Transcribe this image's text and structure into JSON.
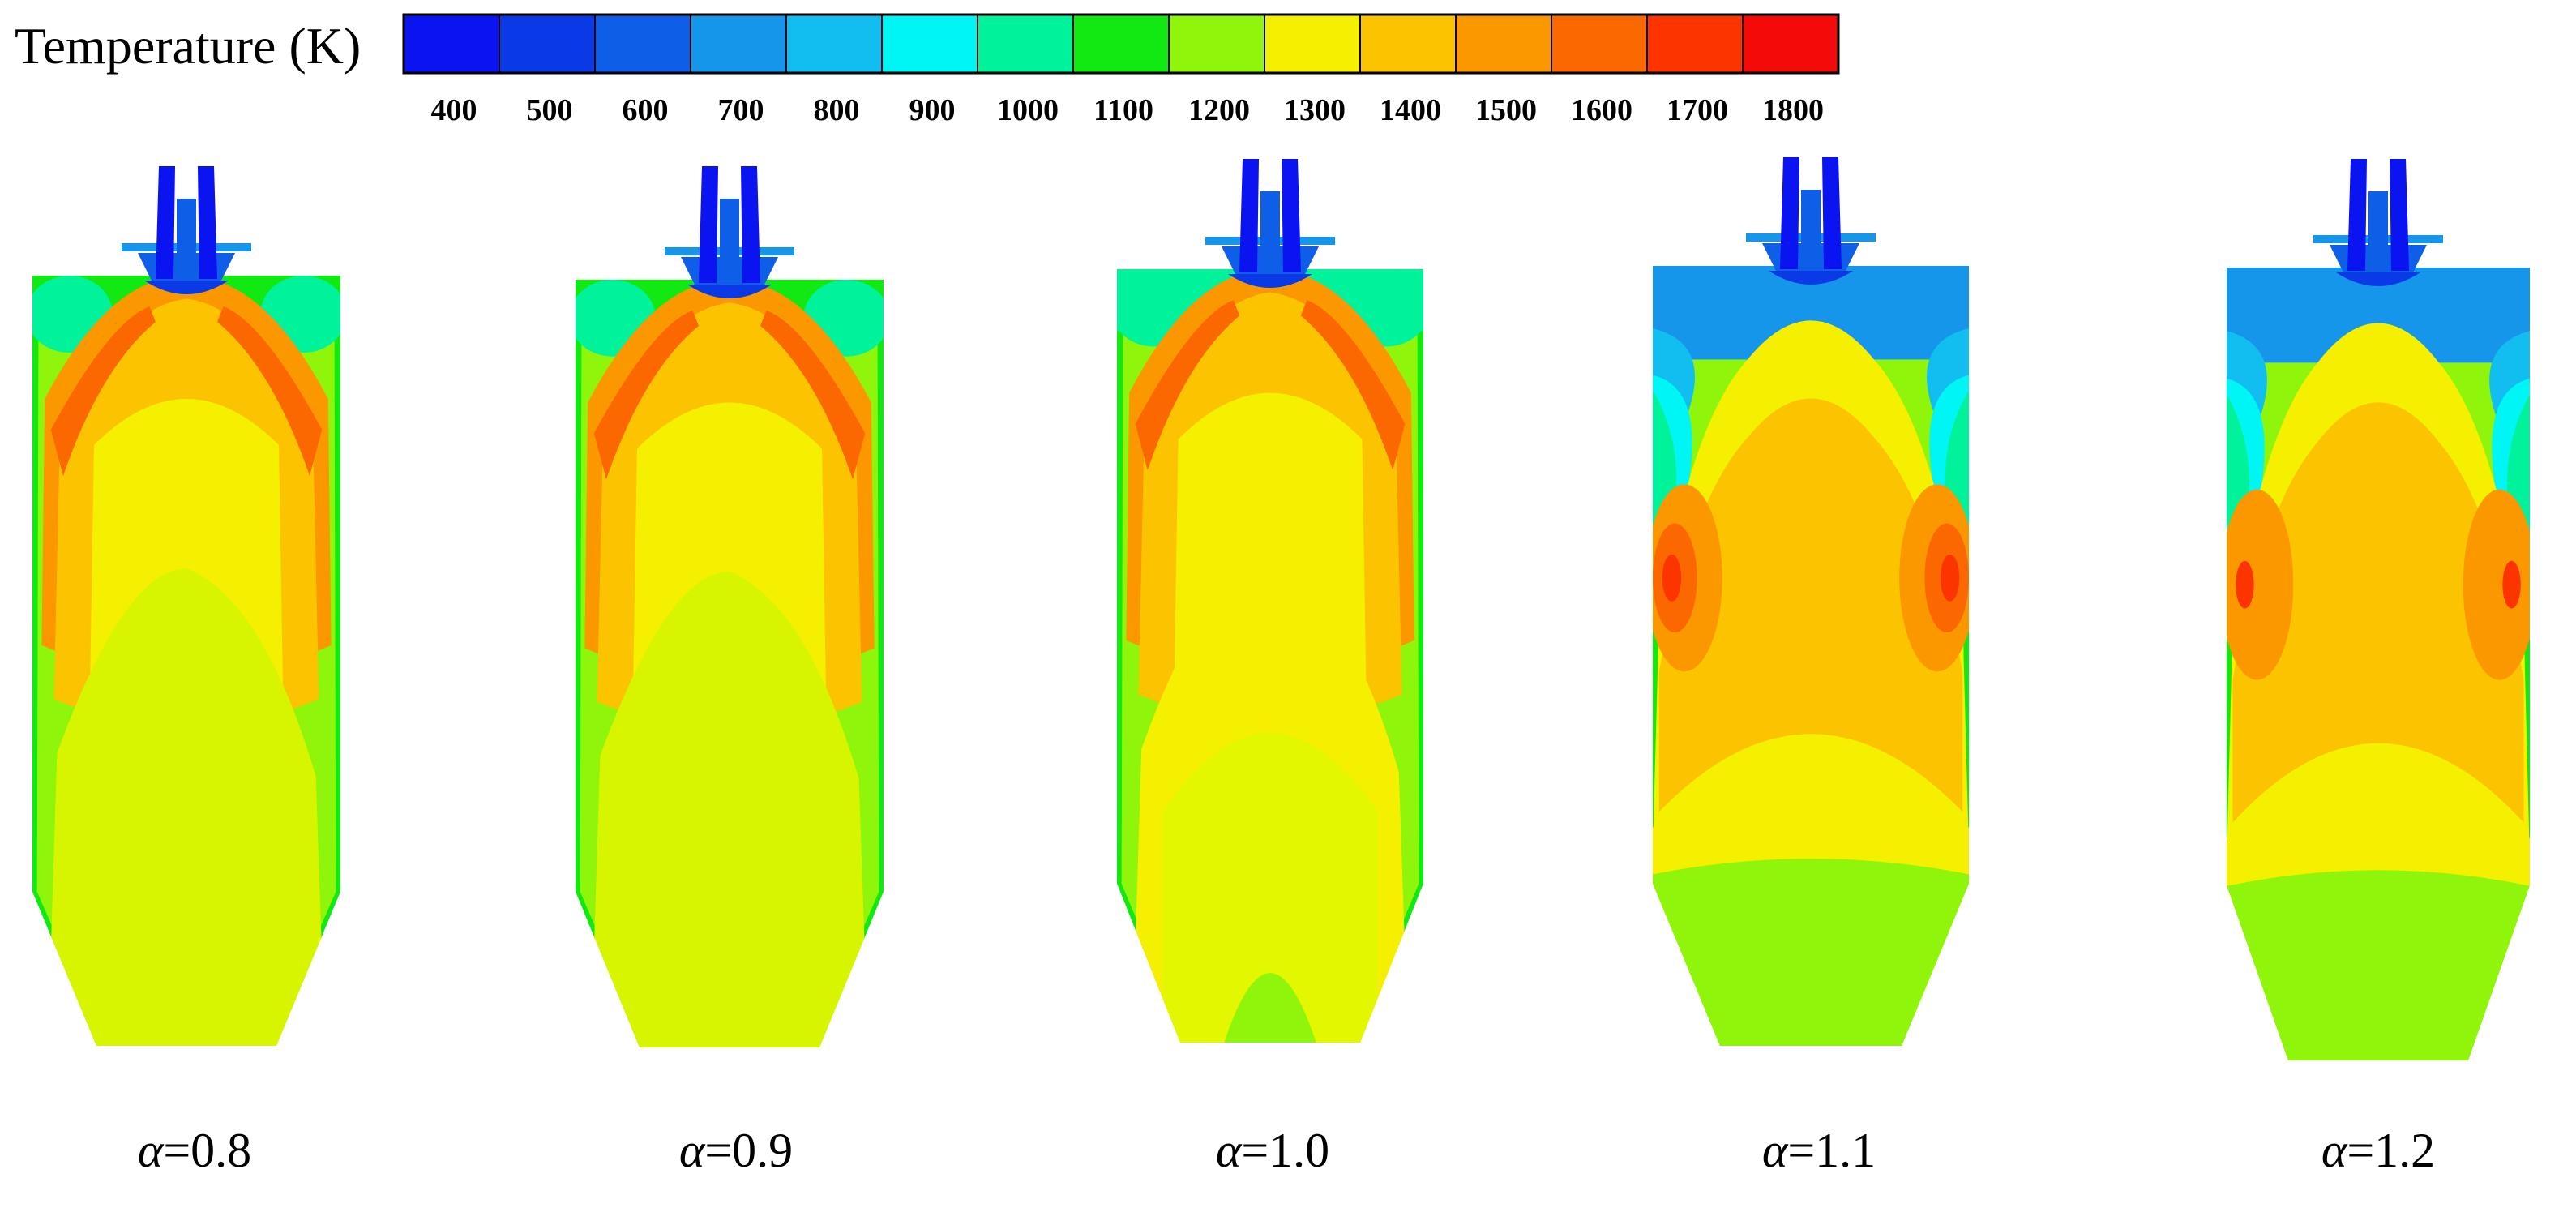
{
  "legend": {
    "title": "Temperature (K)",
    "ticks": [
      "400",
      "500",
      "600",
      "700",
      "800",
      "900",
      "1000",
      "1100",
      "1200",
      "1300",
      "1400",
      "1500",
      "1600",
      "1700",
      "1800"
    ],
    "colors": [
      "#0a14f0",
      "#0a3ae6",
      "#0e5ee8",
      "#1596ea",
      "#12bdf0",
      "#00f5f5",
      "#00f29a",
      "#12e812",
      "#8ff50a",
      "#f5f000",
      "#fcc400",
      "#fb9800",
      "#fb6800",
      "#fb3400",
      "#f50a0a"
    ]
  },
  "cases": [
    {
      "symbol": "α",
      "value": "=0.8"
    },
    {
      "symbol": "α",
      "value": "=0.9"
    },
    {
      "symbol": "α",
      "value": "=1.0"
    },
    {
      "symbol": "α",
      "value": "=1.1"
    },
    {
      "symbol": "α",
      "value": "=1.2"
    }
  ]
}
